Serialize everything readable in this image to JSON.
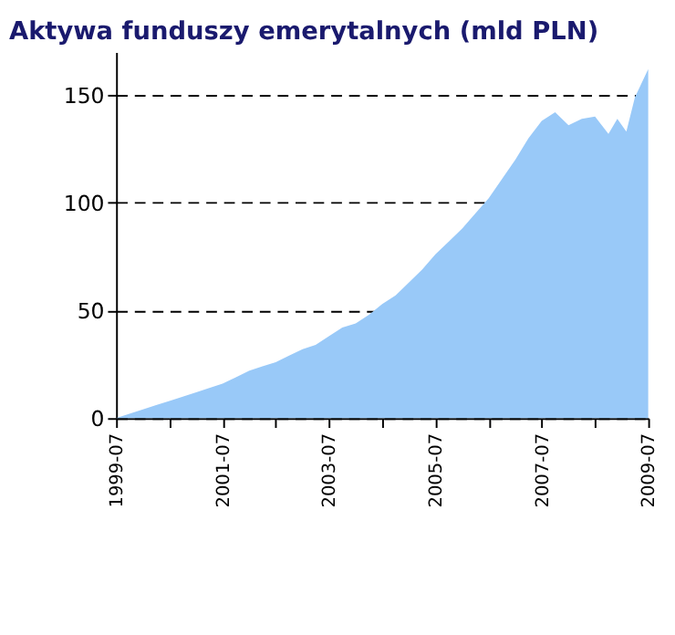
{
  "chart_data": {
    "type": "area",
    "title": "Aktywa funduszy emerytalnych (mld PLN)",
    "x": [
      "1999-07",
      "1999-10",
      "2000-01",
      "2000-04",
      "2000-07",
      "2000-10",
      "2001-01",
      "2001-04",
      "2001-07",
      "2001-10",
      "2002-01",
      "2002-04",
      "2002-07",
      "2002-10",
      "2003-01",
      "2003-04",
      "2003-07",
      "2003-10",
      "2004-01",
      "2004-04",
      "2004-07",
      "2004-10",
      "2005-01",
      "2005-04",
      "2005-07",
      "2005-10",
      "2006-01",
      "2006-04",
      "2006-07",
      "2006-10",
      "2007-01",
      "2007-04",
      "2007-07",
      "2007-10",
      "2008-01",
      "2008-04",
      "2008-07",
      "2008-10",
      "2008-12",
      "2009-02",
      "2009-04",
      "2009-07"
    ],
    "series": [
      {
        "color": "#99c9f8",
        "values": [
          0,
          2,
          4,
          6,
          8,
          10,
          12,
          14,
          16,
          19,
          22,
          24,
          26,
          29,
          32,
          34,
          38,
          42,
          44,
          48,
          53,
          57,
          63,
          69,
          76,
          82,
          88,
          95,
          102,
          111,
          120,
          130,
          138,
          142,
          136,
          139,
          140,
          132,
          139,
          133,
          149,
          162
        ]
      }
    ],
    "xlim": [
      "1999-07",
      "2009-07"
    ],
    "xticks": [
      {
        "value": "1999-07",
        "label": "1999-07"
      },
      {
        "value": "2000-07",
        "label": null
      },
      {
        "value": "2001-07",
        "label": "2001-07"
      },
      {
        "value": "2002-07",
        "label": null
      },
      {
        "value": "2003-07",
        "label": "2003-07"
      },
      {
        "value": "2004-07",
        "label": null
      },
      {
        "value": "2005-07",
        "label": "2005-07"
      },
      {
        "value": "2006-07",
        "label": null
      },
      {
        "value": "2007-07",
        "label": "2007-07"
      },
      {
        "value": "2008-07",
        "label": null
      },
      {
        "value": "2009-07",
        "label": "2009-07"
      }
    ],
    "ylim": [
      0,
      170
    ],
    "yticks": [
      0,
      50,
      100,
      150
    ],
    "grid": "y"
  }
}
